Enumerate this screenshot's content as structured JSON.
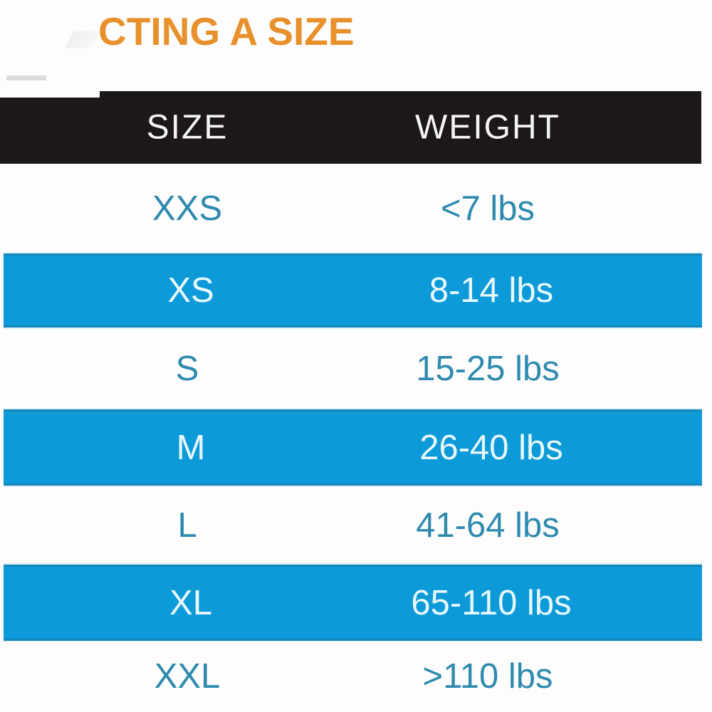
{
  "title": "CTING A SIZE",
  "chart_data": {
    "type": "table",
    "title": "CTING A SIZE",
    "columns": [
      "SIZE",
      "WEIGHT"
    ],
    "rows": [
      [
        "XXS",
        "<7 lbs"
      ],
      [
        "XS",
        "8-14 lbs"
      ],
      [
        "S",
        "15-25 lbs"
      ],
      [
        "M",
        "26-40 lbs"
      ],
      [
        "L",
        "41-64 lbs"
      ],
      [
        "XL",
        "65-110 lbs"
      ],
      [
        "XXL",
        ">110 lbs"
      ]
    ],
    "row_backgrounds": [
      "white",
      "blue",
      "white",
      "blue",
      "white",
      "blue",
      "white"
    ],
    "layout": "two centered columns; header on black band; alternating azure highlight rows"
  },
  "colors": {
    "title_orange": "#e8912c",
    "header_band_black": "#1c181a",
    "header_text_white": "#f5f4f4",
    "row_blue": "#0d9ad8",
    "row_blue_edge": "#1486ba",
    "text_blue": "#2e8aae",
    "text_on_blue": "#e9f8fc",
    "background": "#fdfdfd"
  }
}
